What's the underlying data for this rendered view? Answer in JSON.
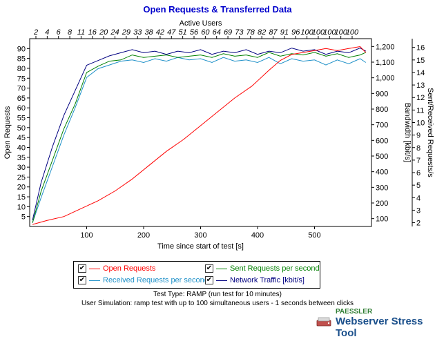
{
  "title": "Open Requests & Transferred Data",
  "top_axis_label": "Active Users",
  "legend": {
    "open_requests": "Open Requests",
    "sent_requests": "Sent Requests per second",
    "received_requests": "Received Requests per second",
    "network_traffic": "Network Traffic [kbit/s]",
    "check": "✔"
  },
  "footer": {
    "line1": "Test Type: RAMP (run test for 10 minutes)",
    "line2": "User Simulation: ramp test with up to 100 simultaneous users - 1 seconds between clicks"
  },
  "logo": {
    "brand": "PAESSLER",
    "product": "Webserver Stress Tool",
    "icon": "paessler-logo-icon"
  },
  "colors": {
    "open_requests": "#ff0000",
    "sent_requests": "#008000",
    "received_requests": "#1e90c8",
    "network_traffic": "#000080",
    "title": "#0000cc"
  },
  "chart_data": {
    "type": "line",
    "title": "Open Requests & Transferred Data",
    "xlabel": "Time since start of test [s]",
    "xlim": [
      0,
      600
    ],
    "x_ticks": [
      100,
      200,
      300,
      400,
      500
    ],
    "top_axis": {
      "label": "Active Users",
      "ticks": [
        "2",
        "4",
        "6",
        "8",
        "11",
        "16",
        "20",
        "24",
        "29",
        "33",
        "38",
        "42",
        "47",
        "51",
        "56",
        "60",
        "64",
        "69",
        "73",
        "78",
        "82",
        "87",
        "91",
        "96",
        "100",
        "100",
        "100",
        "100",
        "100"
      ]
    },
    "y_left": {
      "label": "Open Requests",
      "range": [
        0,
        95
      ],
      "ticks": [
        5,
        10,
        15,
        20,
        25,
        30,
        35,
        40,
        45,
        50,
        55,
        60,
        65,
        70,
        75,
        80,
        85,
        90
      ]
    },
    "y_right1": {
      "label": "Bandwidth [kbit/s]",
      "range": [
        50,
        1250
      ],
      "ticks": [
        "100",
        "200",
        "300",
        "400",
        "500",
        "600",
        "700",
        "800",
        "900",
        "1,000",
        "1,100",
        "1,200"
      ]
    },
    "y_right2": {
      "label": "Sent/Received Requests/s",
      "range": [
        1.7,
        16.7
      ],
      "ticks": [
        2,
        3,
        4,
        5,
        6,
        7,
        8,
        9,
        10,
        11,
        12,
        13,
        14,
        15,
        16
      ]
    },
    "grid": false,
    "series": [
      {
        "name": "Open Requests",
        "axis": "left",
        "x": [
          5,
          30,
          60,
          90,
          120,
          150,
          180,
          210,
          240,
          270,
          300,
          330,
          360,
          390,
          420,
          440,
          460,
          480,
          500,
          520,
          540,
          560,
          580,
          590
        ],
        "y": [
          1,
          3,
          5,
          9,
          13,
          18,
          24,
          31,
          38,
          44,
          51,
          58,
          65,
          71,
          79,
          84,
          87,
          88,
          89,
          90,
          89,
          90,
          91,
          88
        ]
      },
      {
        "name": "Sent Requests per second",
        "axis": "right2",
        "x": [
          5,
          20,
          40,
          60,
          80,
          100,
          120,
          140,
          160,
          180,
          200,
          220,
          240,
          260,
          280,
          300,
          320,
          340,
          360,
          380,
          400,
          420,
          440,
          460,
          480,
          500,
          520,
          540,
          560,
          580,
          590
        ],
        "y": [
          2,
          4.5,
          7,
          9.5,
          11.5,
          14,
          14.5,
          14.9,
          15,
          15.4,
          15.2,
          15.3,
          15.4,
          15.2,
          15.3,
          15.4,
          15.2,
          15.5,
          15.3,
          15.4,
          15.2,
          15.6,
          15.3,
          15.5,
          15.4,
          15.6,
          15.3,
          15.5,
          15.2,
          15.4,
          15.6
        ]
      },
      {
        "name": "Received Requests per second",
        "axis": "right2",
        "x": [
          5,
          20,
          40,
          60,
          80,
          100,
          120,
          140,
          160,
          180,
          200,
          220,
          240,
          260,
          280,
          300,
          320,
          340,
          360,
          380,
          400,
          420,
          440,
          460,
          480,
          500,
          520,
          540,
          560,
          580,
          590
        ],
        "y": [
          2,
          4,
          6.5,
          9,
          11.2,
          13.6,
          14.3,
          14.6,
          14.9,
          15,
          14.8,
          15.1,
          14.9,
          15.2,
          15,
          15.1,
          14.8,
          15.2,
          14.9,
          15,
          14.8,
          15.2,
          14.7,
          15.1,
          14.9,
          15,
          14.6,
          15,
          14.7,
          15.1,
          14.8
        ]
      },
      {
        "name": "Network Traffic [kbit/s]",
        "axis": "right1",
        "x": [
          5,
          20,
          40,
          60,
          80,
          100,
          120,
          140,
          160,
          180,
          200,
          220,
          240,
          260,
          280,
          300,
          320,
          340,
          360,
          380,
          400,
          420,
          440,
          460,
          480,
          500,
          520,
          540,
          560,
          580,
          590
        ],
        "y": [
          90,
          330,
          560,
          760,
          920,
          1080,
          1110,
          1140,
          1160,
          1180,
          1160,
          1170,
          1150,
          1170,
          1160,
          1180,
          1150,
          1170,
          1160,
          1180,
          1150,
          1170,
          1160,
          1190,
          1170,
          1180,
          1150,
          1170,
          1160,
          1190,
          1170
        ]
      }
    ]
  }
}
